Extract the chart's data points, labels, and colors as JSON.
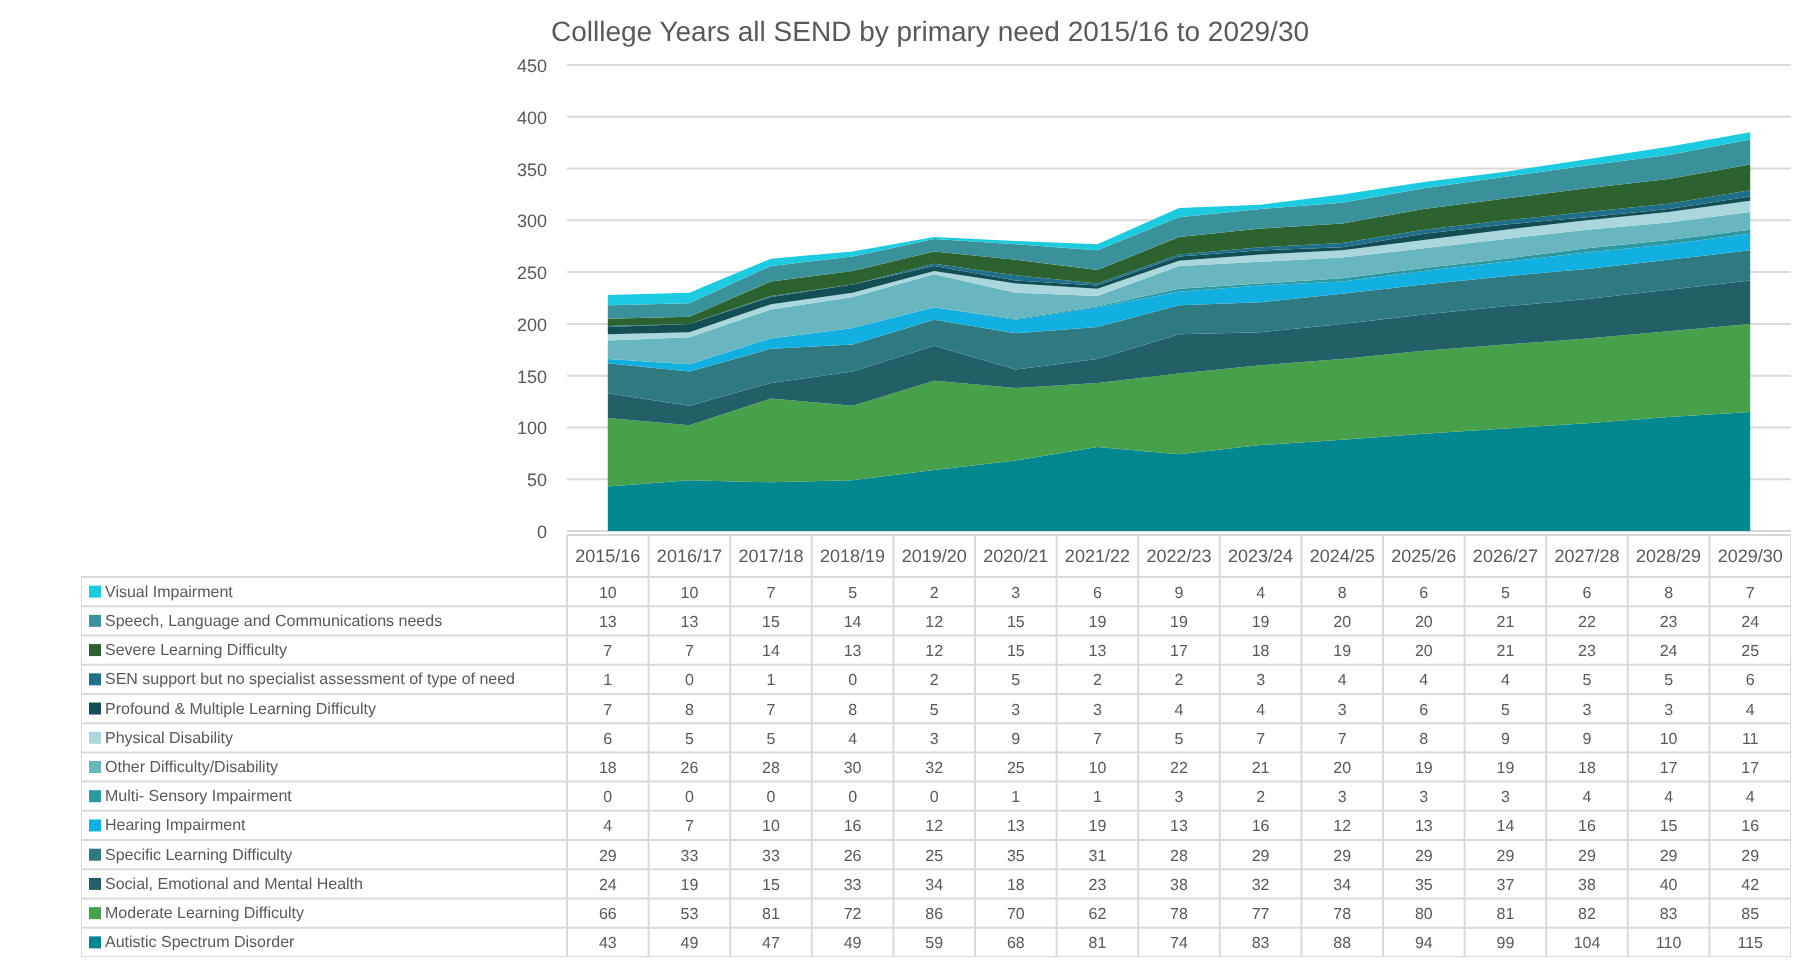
{
  "chart_data": {
    "type": "area",
    "title": "Colllege Years all SEND by primary need 2015/16 to 2029/30",
    "categories": [
      "2015/16",
      "2016/17",
      "2017/18",
      "2018/19",
      "2019/20",
      "2020/21",
      "2021/22",
      "2022/23",
      "2023/24",
      "2024/25",
      "2025/26",
      "2026/27",
      "2027/28",
      "2028/29",
      "2029/30"
    ],
    "stacked": true,
    "ylim": [
      0,
      450
    ],
    "yticks": [
      0,
      50,
      100,
      150,
      200,
      250,
      300,
      350,
      400,
      450
    ],
    "grid": "y",
    "legend": "bottom",
    "data_labels": true,
    "series": [
      {
        "name": "Autistic Spectrum Disorder",
        "color": "#00878f",
        "values": [
          43,
          49,
          47,
          49,
          59,
          68,
          81,
          74,
          83,
          88,
          94,
          99,
          104,
          110,
          115
        ]
      },
      {
        "name": "Moderate Learning Difficulty",
        "color": "#47a04a",
        "values": [
          66,
          53,
          81,
          72,
          86,
          70,
          62,
          78,
          77,
          78,
          80,
          81,
          82,
          83,
          85
        ]
      },
      {
        "name": "Social, Emotional and Mental Health",
        "color": "#225f67",
        "values": [
          24,
          19,
          15,
          33,
          34,
          18,
          23,
          38,
          32,
          34,
          35,
          37,
          38,
          40,
          42
        ]
      },
      {
        "name": "Specific Learning Difficulty",
        "color": "#2f7980",
        "values": [
          29,
          33,
          33,
          26,
          25,
          35,
          31,
          28,
          29,
          29,
          29,
          29,
          29,
          29,
          29
        ]
      },
      {
        "name": "Hearing Impairment",
        "color": "#12b0e0",
        "values": [
          4,
          7,
          10,
          16,
          12,
          13,
          19,
          13,
          16,
          12,
          13,
          14,
          16,
          15,
          16
        ]
      },
      {
        "name": "Multi- Sensory Impairment",
        "color": "#2a99a2",
        "values": [
          0,
          0,
          0,
          0,
          0,
          1,
          1,
          3,
          2,
          3,
          3,
          3,
          4,
          4,
          4
        ]
      },
      {
        "name": "Other Difficulty/Disability",
        "color": "#68b7c0",
        "values": [
          18,
          26,
          28,
          30,
          32,
          25,
          10,
          22,
          21,
          20,
          19,
          19,
          18,
          17,
          17
        ]
      },
      {
        "name": "Physical Disability",
        "color": "#a9d7db",
        "values": [
          6,
          5,
          5,
          4,
          3,
          9,
          7,
          5,
          7,
          7,
          8,
          9,
          9,
          10,
          11
        ]
      },
      {
        "name": "Profound & Multiple Learning Difficulty",
        "color": "#134e55",
        "values": [
          7,
          8,
          7,
          8,
          5,
          3,
          3,
          4,
          4,
          3,
          6,
          5,
          3,
          3,
          4
        ]
      },
      {
        "name": "SEN support but no specialist assessment of type of need",
        "color": "#1f6e8a",
        "values": [
          1,
          0,
          1,
          0,
          2,
          5,
          2,
          2,
          3,
          4,
          4,
          4,
          5,
          5,
          6
        ]
      },
      {
        "name": "Severe Learning Difficulty",
        "color": "#2b6230",
        "values": [
          7,
          7,
          14,
          13,
          12,
          15,
          13,
          17,
          18,
          19,
          20,
          21,
          23,
          24,
          25
        ]
      },
      {
        "name": "Speech, Language and Communications needs",
        "color": "#3b9199",
        "values": [
          13,
          13,
          15,
          14,
          12,
          15,
          19,
          19,
          19,
          20,
          20,
          21,
          22,
          23,
          24
        ]
      },
      {
        "name": "Visual Impairment",
        "color": "#1dcbe0",
        "values": [
          10,
          10,
          7,
          5,
          2,
          3,
          6,
          9,
          4,
          8,
          6,
          5,
          6,
          8,
          7
        ]
      }
    ]
  }
}
